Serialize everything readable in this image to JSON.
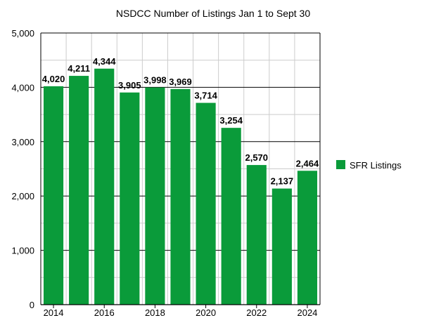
{
  "chart_data": {
    "type": "bar",
    "title": "NSDCC Number of Listings Jan 1 to Sept 30",
    "xlabel": "",
    "ylabel": "",
    "categories": [
      "2014",
      "2015",
      "2016",
      "2017",
      "2018",
      "2019",
      "2020",
      "2021",
      "2022",
      "2023",
      "2024"
    ],
    "x_tick_labels": [
      "2014",
      "",
      "2016",
      "",
      "2018",
      "",
      "2020",
      "",
      "2022",
      "",
      "2024"
    ],
    "series": [
      {
        "name": "SFR Listings",
        "values": [
          4020,
          4211,
          4344,
          3905,
          3998,
          3969,
          3714,
          3254,
          2570,
          2137,
          2464
        ],
        "labels": [
          "4,020",
          "4,211",
          "4,344",
          "3,905",
          "3,998",
          "3,969",
          "3,714",
          "3,254",
          "2,570",
          "2,137",
          "2,464"
        ]
      }
    ],
    "ylim": [
      0,
      5000
    ],
    "y_ticks": [
      0,
      1000,
      2000,
      3000,
      4000,
      5000
    ],
    "y_tick_labels": [
      "0",
      "1,000",
      "2,000",
      "3,000",
      "4,000",
      "5,000"
    ],
    "grid": true,
    "legend": "right",
    "colors": {
      "bar": "#0a9b3a",
      "major_grid": "#000000",
      "minor_grid": "#cccccc"
    }
  }
}
